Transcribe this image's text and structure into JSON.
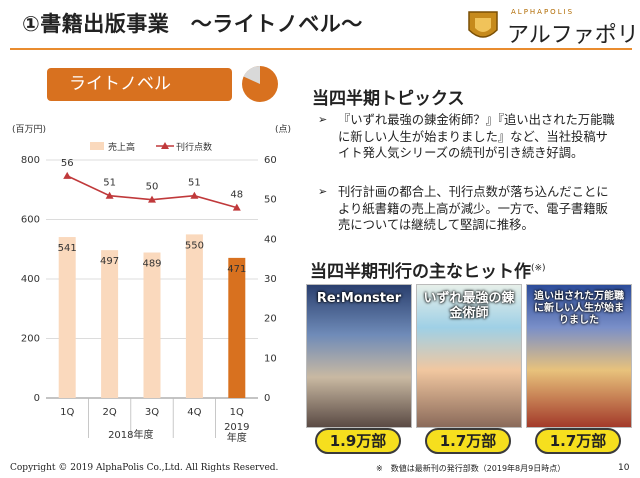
{
  "header": {
    "title": "①書籍出版事業　～ライトノベル～",
    "logo_small": "ALPHAPOLIS",
    "logo_main": "アルファポリス"
  },
  "badge": {
    "label": "ライトノベル"
  },
  "colors": {
    "accent": "#d8711f",
    "bar": "#fad9bd",
    "bar_highlight": "#d8711f",
    "line": "#c0393b",
    "pill": "#f6df1e"
  },
  "chart_data": {
    "type": "bar",
    "categories": [
      "1Q",
      "2Q",
      "3Q",
      "4Q",
      "1Q"
    ],
    "group_labels": [
      "2018年度",
      "2019\n年度"
    ],
    "series": [
      {
        "name": "売上高",
        "values": [
          541,
          497,
          489,
          550,
          471
        ],
        "axis": "left",
        "type": "bar"
      },
      {
        "name": "刊行点数",
        "values": [
          56,
          51,
          50,
          51,
          48
        ],
        "axis": "right",
        "type": "line"
      }
    ],
    "ylabel_left": "(百万円)",
    "ylabel_right": "(点)",
    "ylim_left": [
      0,
      800
    ],
    "ylim_right": [
      0,
      60
    ],
    "yticks_left": [
      "0",
      "200",
      "400",
      "600",
      "800"
    ],
    "yticks_right": [
      "0",
      "10",
      "20",
      "30",
      "40",
      "50",
      "60"
    ],
    "highlight_index": 4,
    "legend": "top"
  },
  "topics": {
    "title": "当四半期トピックス",
    "bullets": [
      "『いずれ最強の錬金術師？』『追い出された万能職に新しい人生が始まりました』など、当社投稿サイト発人気シリーズの続刊が引き続き好調。",
      "刊行計画の都合上、刊行点数が落ち込んだことにより紙書籍の売上高が減少。一方で、電子書籍販売については継続して堅調に推移。"
    ]
  },
  "hits": {
    "title": "当四半期刊行の主なヒット作",
    "note_mark": "(※)",
    "books": [
      {
        "cover_title": "Re:Monster",
        "sales": "1.9万部"
      },
      {
        "cover_title": "いずれ最強の錬金術師",
        "sales": "1.7万部"
      },
      {
        "cover_title": "追い出された万能職に新しい人生が始まりました",
        "sales": "1.7万部"
      }
    ]
  },
  "footer": {
    "copyright": "Copyright © 2019 AlphaPolis Co.,Ltd.  All Rights Reserved.",
    "note": "※　数値は最新刊の発行部数（2019年8月9日時点）",
    "page": "10"
  }
}
